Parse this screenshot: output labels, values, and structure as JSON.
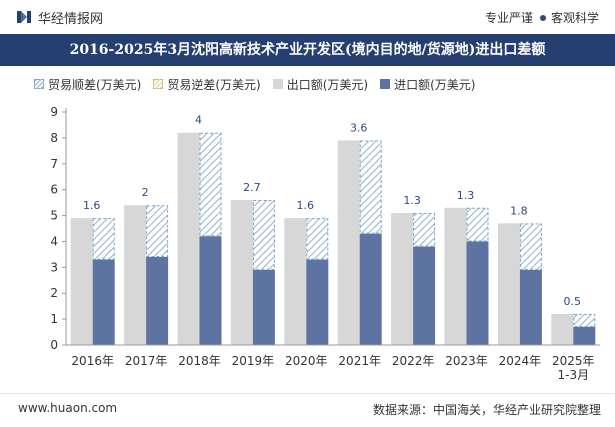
{
  "header": {
    "brand": "华经情报网",
    "tagline_left": "专业严谨",
    "tagline_right": "客观科学",
    "title": "2016-2025年3月沈阳高新技术产业开发区(境内目的地/货源地)进出口差额"
  },
  "legend": {
    "surplus": "贸易顺差(万美元)",
    "deficit": "贸易逆差(万美元)",
    "export": "出口额(万美元)",
    "import": "进口额(万美元)"
  },
  "footer": {
    "website": "www.huaon.com",
    "source": "数据来源：中国海关，华经产业研究院整理"
  },
  "colors": {
    "title_bg": "#253f70",
    "export": "#d7d7d7",
    "import": "#5d73a2",
    "surplus": "#8fb2d2",
    "deficit": "#e4d089"
  },
  "chart_data": {
    "type": "bar",
    "categories": [
      "2016年",
      "2017年",
      "2018年",
      "2019年",
      "2020年",
      "2021年",
      "2022年",
      "2023年",
      "2024年",
      "2025年\n1-3月"
    ],
    "series": [
      {
        "name": "出口额(万美元)",
        "values": [
          4.9,
          5.4,
          8.2,
          5.6,
          4.9,
          7.9,
          5.1,
          5.3,
          4.7,
          1.2
        ]
      },
      {
        "name": "进口额(万美元)",
        "values": [
          3.3,
          3.4,
          4.2,
          2.9,
          3.3,
          4.3,
          3.8,
          4.0,
          2.9,
          0.7
        ]
      },
      {
        "name": "贸易顺差(万美元)",
        "values": [
          1.6,
          2,
          4,
          2.7,
          1.6,
          3.6,
          1.3,
          1.3,
          1.8,
          0.5
        ]
      },
      {
        "name": "贸易逆差(万美元)",
        "values": [
          0,
          0,
          0,
          0,
          0,
          0,
          0,
          0,
          0,
          0
        ]
      }
    ],
    "data_labels": [
      "1.6",
      "2",
      "4",
      "2.7",
      "1.6",
      "3.6",
      "1.3",
      "1.3",
      "1.8",
      "0.5"
    ],
    "yticks": [
      "0",
      "1",
      "2",
      "3",
      "4",
      "5",
      "6",
      "7",
      "8",
      "9"
    ],
    "ylim": [
      0,
      9
    ],
    "grid": false,
    "legend_position": "top-left"
  }
}
